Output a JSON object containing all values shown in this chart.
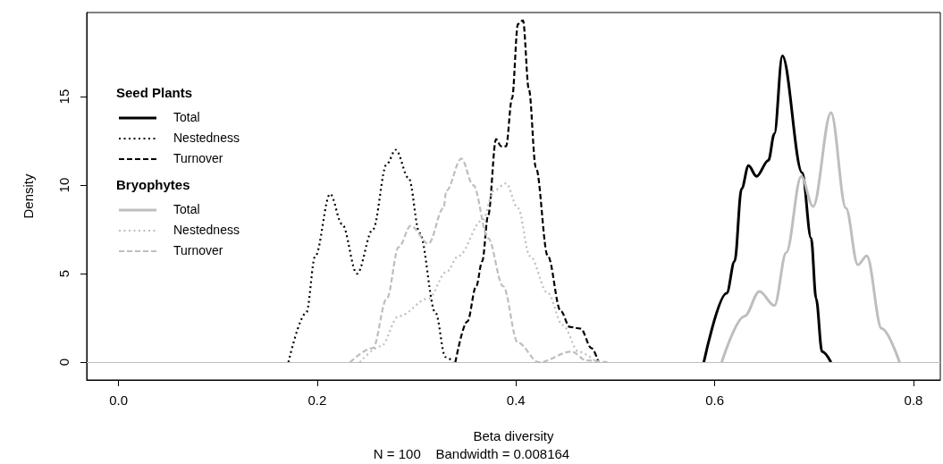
{
  "chart_data": {
    "type": "line",
    "xlabel": "Beta diversity",
    "ylabel": "Density",
    "annotations": [
      "Seed Plants",
      "Bryophytes",
      "N = 100    Bandwidth = 0.008164"
    ],
    "xlim": [
      -0.032,
      0.827
    ],
    "xticks": [
      {
        "value": 0,
        "label": "0.0"
      },
      0.2,
      0.4,
      0.6,
      0.8
    ],
    "ylim": [
      -1,
      19.75
    ],
    "yticks": [
      0,
      5,
      10,
      15
    ],
    "grid": false,
    "legend": "top left",
    "marker": "none",
    "ref_lines": [
      {
        "axis": "y",
        "value": 0,
        "color": "#bebebe"
      }
    ],
    "series": [
      {
        "name": "Total",
        "color": "#000000",
        "line_style": "solid",
        "x": [
          0.589,
          0.612,
          0.62,
          0.627,
          0.634,
          0.642,
          0.654,
          0.66,
          0.668,
          0.688,
          0.697,
          0.702,
          0.708,
          0.717
        ],
        "values": [
          0,
          3.9,
          5.7,
          9.8,
          11.1,
          10.5,
          11.4,
          12.9,
          17.3,
          10.7,
          7.0,
          3.6,
          0.6,
          0
        ]
      },
      {
        "name": "Nestedness",
        "color": "#000000",
        "line_style": "dotted",
        "x": [
          0.171,
          0.189,
          0.198,
          0.213,
          0.225,
          0.24,
          0.256,
          0.27,
          0.279,
          0.292,
          0.303,
          0.319,
          0.329,
          0.337
        ],
        "values": [
          0,
          2.8,
          6.0,
          9.5,
          7.8,
          5.0,
          7.5,
          11.2,
          12.0,
          10.4,
          7.3,
          2.8,
          0.3,
          0
        ]
      },
      {
        "name": "Turnover",
        "color": "#000000",
        "line_style": "dashed",
        "x": [
          0.339,
          0.351,
          0.36,
          0.366,
          0.372,
          0.38,
          0.385,
          0.39,
          0.396,
          0.402,
          0.407,
          0.413,
          0.42,
          0.432,
          0.445,
          0.454,
          0.465,
          0.476,
          0.483
        ],
        "values": [
          0,
          2.3,
          4.3,
          5.7,
          8.3,
          12.6,
          12.2,
          12.2,
          14.9,
          19.1,
          19.3,
          15.4,
          11.0,
          6.0,
          2.9,
          2.0,
          1.9,
          0.8,
          0
        ]
      },
      {
        "name": "Total",
        "color": "#bebebe",
        "line_style": "solid",
        "x": [
          0.607,
          0.63,
          0.645,
          0.66,
          0.672,
          0.687,
          0.699,
          0.717,
          0.732,
          0.744,
          0.753,
          0.768,
          0.786
        ],
        "values": [
          0,
          2.6,
          4.0,
          3.2,
          6.2,
          10.5,
          8.8,
          14.1,
          8.7,
          5.5,
          6.0,
          1.9,
          0
        ]
      },
      {
        "name": "Nestedness",
        "color": "#bebebe",
        "line_style": "dotted",
        "x": [
          0.243,
          0.264,
          0.282,
          0.312,
          0.33,
          0.342,
          0.366,
          0.378,
          0.39,
          0.402,
          0.414,
          0.432,
          0.447,
          0.463,
          0.481
        ],
        "values": [
          0,
          0.9,
          2.6,
          3.6,
          5.1,
          6.0,
          8.0,
          9.7,
          10.1,
          8.7,
          6.0,
          3.9,
          2.1,
          0.6,
          0
        ]
      },
      {
        "name": "Turnover",
        "color": "#bebebe",
        "line_style": "dashed",
        "x": [
          0.233,
          0.256,
          0.27,
          0.282,
          0.294,
          0.312,
          0.327,
          0.33,
          0.345,
          0.357,
          0.372,
          0.387,
          0.402,
          0.423,
          0.456,
          0.471,
          0.492
        ],
        "values": [
          0,
          0.8,
          3.6,
          6.5,
          7.7,
          6.7,
          8.7,
          9.7,
          11.5,
          10.0,
          7.0,
          4.3,
          1.1,
          0,
          0.6,
          0.1,
          0
        ]
      }
    ]
  }
}
